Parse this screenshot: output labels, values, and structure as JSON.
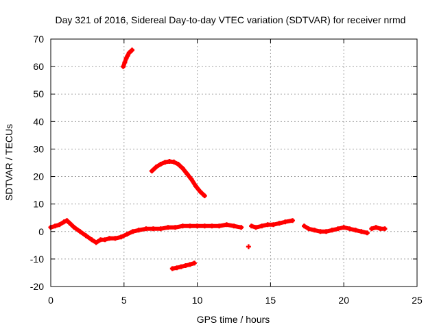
{
  "chart_data": {
    "type": "scatter",
    "title": "Day 321 of 2016, Sidereal Day-to-day VTEC variation (SDTVAR) for receiver nrmd",
    "xlabel": "GPS time / hours",
    "ylabel": "SDTVAR / TECUs",
    "xlim": [
      0,
      25
    ],
    "ylim": [
      -20,
      70
    ],
    "xticks": [
      0,
      5,
      10,
      15,
      20,
      25
    ],
    "yticks": [
      -20,
      -10,
      0,
      10,
      20,
      30,
      40,
      50,
      60,
      70
    ],
    "grid": true,
    "marker": "plus",
    "color": "#ff0000",
    "series": [
      {
        "name": "main-band",
        "x": [
          0.0,
          0.3,
          0.6,
          0.9,
          1.1,
          1.3,
          1.6,
          2.0,
          2.4,
          2.8,
          3.1,
          3.4,
          3.7,
          4.0,
          4.4,
          4.8,
          5.2,
          5.6,
          6.0,
          6.5,
          7.0,
          7.5,
          8.0,
          8.5,
          9.0,
          9.5,
          10.0,
          10.5,
          11.0,
          11.5,
          12.0,
          12.5,
          13.0
        ],
        "y": [
          1.5,
          2.0,
          2.5,
          3.5,
          4.0,
          3.0,
          1.5,
          0.0,
          -1.5,
          -3.0,
          -4.0,
          -3.0,
          -3.0,
          -2.5,
          -2.5,
          -2.0,
          -1.0,
          0.0,
          0.5,
          1.0,
          1.0,
          1.0,
          1.5,
          1.5,
          2.0,
          2.0,
          2.0,
          2.0,
          2.0,
          2.0,
          2.5,
          2.0,
          1.5
        ]
      },
      {
        "name": "late-band-1",
        "x": [
          13.7,
          14.0,
          14.4,
          14.8,
          15.2,
          15.6,
          16.0,
          16.5
        ],
        "y": [
          2.0,
          1.5,
          2.0,
          2.5,
          2.5,
          3.0,
          3.5,
          4.0
        ]
      },
      {
        "name": "late-band-2",
        "x": [
          17.3,
          17.6,
          18.0,
          18.4,
          18.8,
          19.2,
          19.6,
          20.0,
          20.4,
          20.8,
          21.2,
          21.6
        ],
        "y": [
          2.0,
          1.0,
          0.5,
          0.0,
          0.0,
          0.5,
          1.0,
          1.5,
          1.0,
          0.5,
          0.0,
          -0.5
        ]
      },
      {
        "name": "late-band-3",
        "x": [
          21.9,
          22.2,
          22.5,
          22.8
        ],
        "y": [
          1.0,
          1.5,
          1.0,
          1.0
        ]
      },
      {
        "name": "arc-top",
        "x": [
          4.95,
          5.05,
          5.15,
          5.25,
          5.35,
          5.45,
          5.55
        ],
        "y": [
          60,
          61.5,
          63,
          64,
          65,
          65.5,
          66
        ]
      },
      {
        "name": "arc-mid",
        "x": [
          6.9,
          7.2,
          7.5,
          7.8,
          8.1,
          8.4,
          8.7,
          9.0,
          9.3,
          9.6,
          9.9,
          10.2,
          10.5
        ],
        "y": [
          22,
          23.5,
          24.5,
          25.2,
          25.5,
          25.3,
          24.5,
          23,
          21,
          19,
          16.5,
          14.5,
          13
        ]
      },
      {
        "name": "arc-low",
        "x": [
          8.3,
          8.6,
          8.9,
          9.2,
          9.5,
          9.8
        ],
        "y": [
          -13.5,
          -13.2,
          -12.8,
          -12.4,
          -12.0,
          -11.5
        ]
      },
      {
        "name": "outlier",
        "x": [
          13.5
        ],
        "y": [
          -5.5
        ]
      }
    ]
  }
}
